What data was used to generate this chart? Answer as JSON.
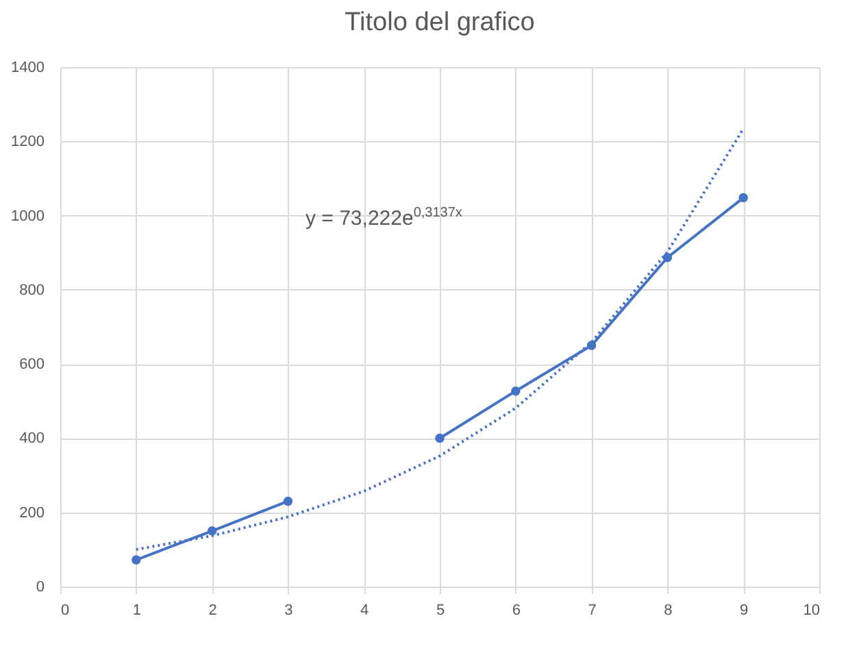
{
  "chart_data": {
    "type": "line",
    "title": "Titolo del grafico",
    "annotations": [
      "y = 73,222e$^{0,3137x}$"
    ],
    "x": [
      1,
      2,
      3,
      4,
      5,
      6,
      7,
      8,
      9
    ],
    "series": [
      {
        "color": "#4472c4",
        "marker": "circle",
        "line_style": "solid",
        "values": [
          72,
          150,
          230,
          null,
          400,
          527,
          650,
          887,
          1048
        ]
      },
      {
        "type": "line",
        "color": "#4472c4",
        "marker": "none",
        "line_style": "dotted",
        "x": [
          1,
          2,
          3,
          4,
          5,
          6,
          7,
          8,
          9
        ],
        "values": [
          100,
          137,
          188,
          257,
          352,
          481,
          659,
          902,
          1234
        ]
      }
    ],
    "xlim": [
      0,
      10
    ],
    "xticks": [
      0,
      1,
      2,
      3,
      4,
      5,
      6,
      7,
      8,
      9,
      10
    ],
    "ylim": [
      0,
      1400
    ],
    "yticks": [
      0,
      200,
      400,
      600,
      800,
      1000,
      1200,
      1400
    ],
    "grid": true
  }
}
